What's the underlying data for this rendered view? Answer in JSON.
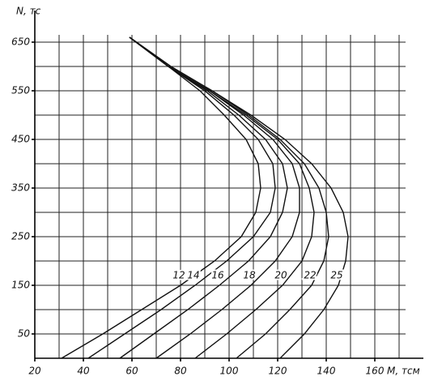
{
  "chart_data": {
    "type": "line",
    "x_label": "M, тсм",
    "y_label": "N, тс",
    "y": [
      0,
      50,
      100,
      150,
      200,
      250,
      300,
      350,
      400,
      450,
      500,
      550,
      600,
      660
    ],
    "series": [
      {
        "name": "12",
        "color": "#111111",
        "values": [
          31,
          48,
          64,
          80,
          94,
          105,
          111,
          113,
          112,
          107,
          98,
          88,
          75,
          59
        ]
      },
      {
        "name": "14",
        "color": "#111111",
        "values": [
          42,
          57,
          72,
          86,
          99,
          110,
          117,
          119,
          118,
          112,
          102,
          90,
          75,
          59
        ]
      },
      {
        "name": "16",
        "color": "#111111",
        "values": [
          55,
          69,
          83,
          96,
          108,
          117,
          122,
          124,
          122,
          115,
          104,
          91,
          75,
          59
        ]
      },
      {
        "name": "18",
        "color": "#111111",
        "values": [
          70,
          84,
          97,
          109,
          119,
          126,
          129,
          129,
          126,
          118,
          106,
          92,
          75,
          59
        ]
      },
      {
        "name": "20",
        "color": "#111111",
        "values": [
          86,
          99,
          111,
          122,
          130,
          134,
          135,
          133,
          129,
          120,
          107,
          92,
          75,
          59
        ]
      },
      {
        "name": "22",
        "color": "#111111",
        "values": [
          103,
          115,
          125,
          134,
          139,
          141,
          140,
          137,
          131,
          121,
          108,
          93,
          76,
          59
        ]
      },
      {
        "name": "25",
        "color": "#111111",
        "values": [
          121,
          131,
          139,
          145,
          148,
          149,
          147,
          142,
          134,
          123,
          109,
          93,
          76,
          59
        ]
      }
    ],
    "xlim": [
      20,
      170
    ],
    "ylim": [
      0,
      665
    ],
    "xticks": [
      20,
      40,
      60,
      80,
      100,
      120,
      140,
      160
    ],
    "yticks": [
      50,
      150,
      250,
      350,
      450,
      550,
      650
    ],
    "xgrid": [
      30,
      40,
      50,
      60,
      70,
      80,
      90,
      100,
      110,
      120,
      130,
      140,
      150,
      160,
      170
    ],
    "ygrid": [
      50,
      100,
      150,
      200,
      250,
      300,
      350,
      400,
      450,
      500,
      550,
      600,
      650
    ]
  }
}
